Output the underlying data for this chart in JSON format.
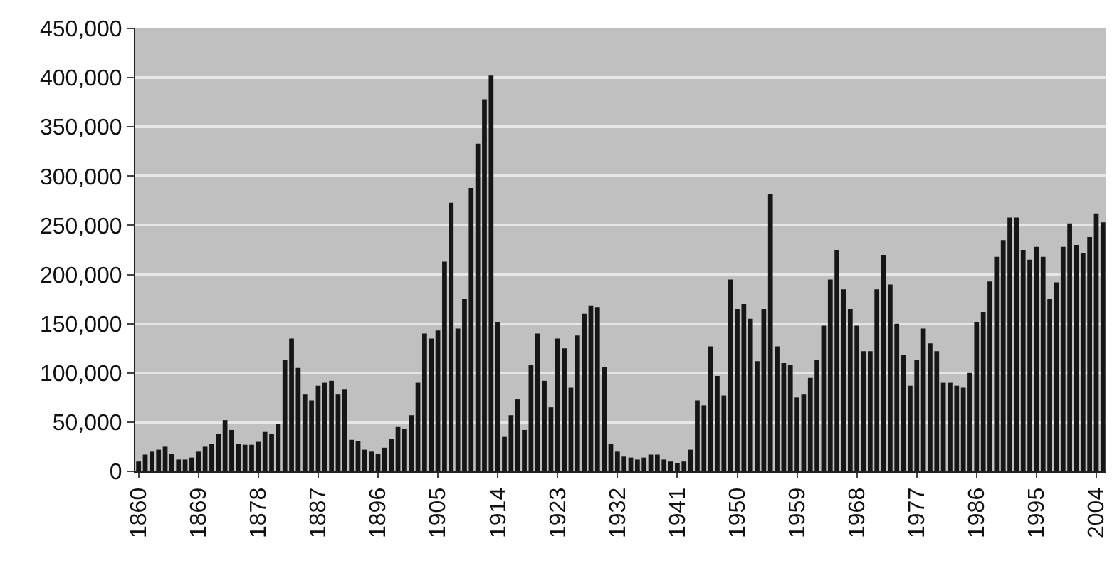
{
  "chart_data": {
    "type": "bar",
    "categories": [
      "1860",
      null,
      null,
      null,
      null,
      null,
      null,
      null,
      null,
      "1869",
      null,
      null,
      null,
      null,
      null,
      null,
      null,
      null,
      "1878",
      null,
      null,
      null,
      null,
      null,
      null,
      null,
      null,
      "1887",
      null,
      null,
      null,
      null,
      null,
      null,
      null,
      null,
      "1896",
      null,
      null,
      null,
      null,
      null,
      null,
      null,
      null,
      "1905",
      null,
      null,
      null,
      null,
      null,
      null,
      null,
      null,
      "1914",
      null,
      null,
      null,
      null,
      null,
      null,
      null,
      null,
      "1923",
      null,
      null,
      null,
      null,
      null,
      null,
      null,
      null,
      "1932",
      null,
      null,
      null,
      null,
      null,
      null,
      null,
      null,
      "1941",
      null,
      null,
      null,
      null,
      null,
      null,
      null,
      null,
      "1950",
      null,
      null,
      null,
      null,
      null,
      null,
      null,
      null,
      "1959",
      null,
      null,
      null,
      null,
      null,
      null,
      null,
      null,
      "1968",
      null,
      null,
      null,
      null,
      null,
      null,
      null,
      null,
      "1977",
      null,
      null,
      null,
      null,
      null,
      null,
      null,
      null,
      "1986",
      null,
      null,
      null,
      null,
      null,
      null,
      null,
      null,
      "1995",
      null,
      null,
      null,
      null,
      null,
      null,
      null,
      null,
      "2004",
      null
    ],
    "values": [
      10000,
      17000,
      20000,
      22000,
      25000,
      18000,
      12000,
      12000,
      14000,
      20000,
      25000,
      28000,
      38000,
      52000,
      42000,
      28000,
      27000,
      27000,
      30000,
      40000,
      38000,
      48000,
      113000,
      135000,
      105000,
      78000,
      72000,
      87000,
      90000,
      92000,
      78000,
      83000,
      32000,
      31000,
      22000,
      20000,
      18000,
      24000,
      33000,
      45000,
      43000,
      57000,
      90000,
      140000,
      135000,
      143000,
      213000,
      273000,
      145000,
      175000,
      288000,
      333000,
      378000,
      402000,
      152000,
      35000,
      57000,
      73000,
      42000,
      108000,
      140000,
      92000,
      65000,
      135000,
      125000,
      85000,
      138000,
      160000,
      168000,
      167000,
      106000,
      28000,
      20000,
      15000,
      14000,
      12000,
      14000,
      17000,
      17000,
      12000,
      10000,
      8000,
      10000,
      22000,
      72000,
      67000,
      127000,
      97000,
      77000,
      195000,
      165000,
      170000,
      155000,
      112000,
      165000,
      282000,
      127000,
      110000,
      108000,
      75000,
      78000,
      95000,
      113000,
      148000,
      195000,
      225000,
      185000,
      165000,
      148000,
      122000,
      122000,
      185000,
      220000,
      190000,
      150000,
      118000,
      87000,
      113000,
      145000,
      130000,
      122000,
      90000,
      90000,
      87000,
      85000,
      100000,
      152000,
      162000,
      193000,
      218000,
      235000,
      258000,
      258000,
      225000,
      215000,
      228000,
      218000,
      175000,
      192000,
      228000,
      252000,
      230000,
      222000,
      238000,
      262000,
      253000
    ],
    "color": "#161616",
    "ylim": [
      0,
      450000
    ],
    "yticks": [
      {
        "value": 0,
        "label": "0"
      },
      {
        "value": 50000,
        "label": "50,000"
      },
      {
        "value": 100000,
        "label": "100,000"
      },
      {
        "value": 150000,
        "label": "150,000"
      },
      {
        "value": 200000,
        "label": "200,000"
      },
      {
        "value": 250000,
        "label": "250,000"
      },
      {
        "value": 300000,
        "label": "300,000"
      },
      {
        "value": 350000,
        "label": "350,000"
      },
      {
        "value": 400000,
        "label": "400,000"
      },
      {
        "value": 450000,
        "label": "450,000"
      }
    ],
    "grid": "y"
  }
}
